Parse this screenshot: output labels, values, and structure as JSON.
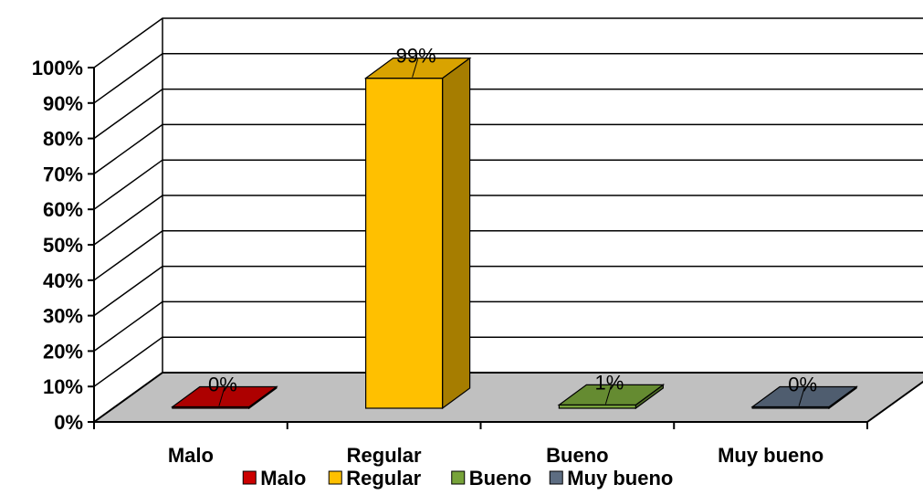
{
  "chart_data": {
    "type": "bar",
    "title": "",
    "xlabel": "",
    "ylabel": "",
    "ylim": [
      0,
      100
    ],
    "y_ticks": [
      "0%",
      "10%",
      "20%",
      "30%",
      "40%",
      "50%",
      "60%",
      "70%",
      "80%",
      "90%",
      "100%"
    ],
    "categories": [
      "Malo",
      "Regular",
      "Bueno",
      "Muy bueno"
    ],
    "values": [
      0,
      99,
      1,
      0
    ],
    "data_labels": [
      "0%",
      "99%",
      "1%",
      "0%"
    ],
    "colors": [
      "#cc0000",
      "#ffc000",
      "#77a33a",
      "#5d6d82"
    ],
    "legend": {
      "placement": "bottom",
      "entries": [
        "Malo",
        "Regular",
        "Bueno",
        "Muy bueno"
      ]
    },
    "grid": true,
    "style": "3d-column"
  }
}
